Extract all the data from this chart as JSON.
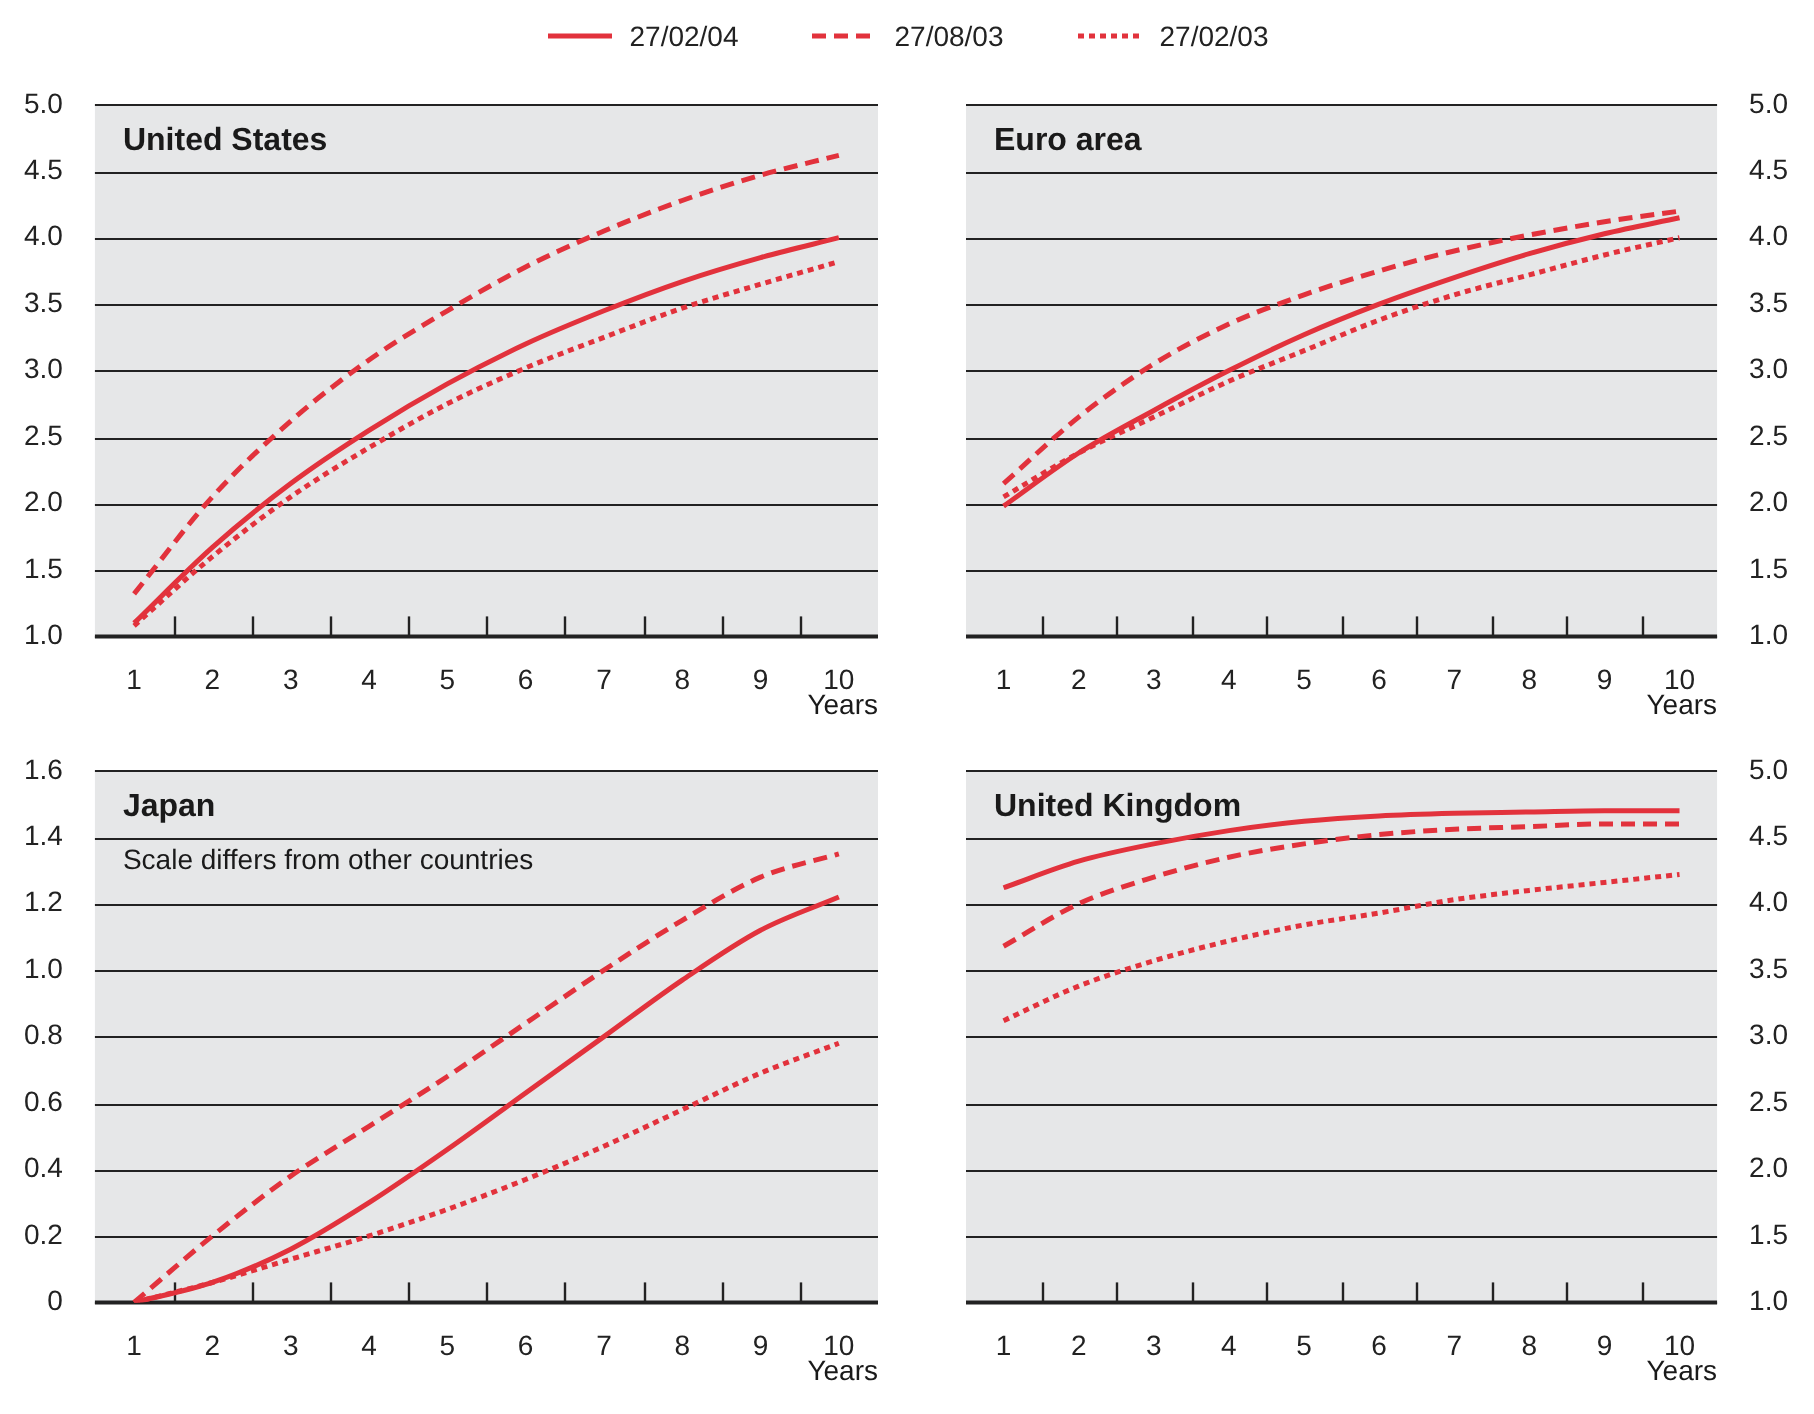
{
  "chart_data": [
    {
      "type": "line",
      "title": "United States",
      "xlabel": "Years",
      "categories": [
        "1",
        "2",
        "3",
        "4",
        "5",
        "6",
        "7",
        "8",
        "9",
        "10"
      ],
      "ylim": [
        1,
        5
      ],
      "yticks": [
        {
          "value": 1,
          "label": "1.0"
        },
        1.5,
        {
          "value": 2,
          "label": "2.0"
        },
        2.5,
        {
          "value": 3,
          "label": "3.0"
        },
        3.5,
        {
          "value": 4,
          "label": "4.0"
        },
        4.5,
        {
          "value": 5,
          "label": "5.0"
        }
      ],
      "grid": "y",
      "legend": "top",
      "marker": "none",
      "series": [
        {
          "name": "27/02/04",
          "color": "#e2323c",
          "line_style": "solid",
          "values": [
            1.1,
            1.67,
            2.15,
            2.55,
            2.9,
            3.2,
            3.45,
            3.67,
            3.85,
            4.0
          ]
        },
        {
          "name": "27/08/03",
          "color": "#e2323c",
          "line_style": "dashed",
          "values": [
            1.32,
            2.05,
            2.62,
            3.08,
            3.45,
            3.78,
            4.05,
            4.28,
            4.47,
            4.62
          ]
        },
        {
          "name": "27/02/03",
          "color": "#e2323c",
          "line_style": "dotted",
          "values": [
            1.08,
            1.6,
            2.05,
            2.42,
            2.75,
            3.02,
            3.25,
            3.47,
            3.65,
            3.82
          ]
        }
      ]
    },
    {
      "type": "line",
      "title": "Euro area",
      "xlabel": "Years",
      "categories": [
        "1",
        "2",
        "3",
        "4",
        "5",
        "6",
        "7",
        "8",
        "9",
        "10"
      ],
      "ylim": [
        1,
        5
      ],
      "yticks": [
        {
          "value": 1,
          "label": "1.0"
        },
        1.5,
        {
          "value": 2,
          "label": "2.0"
        },
        2.5,
        {
          "value": 3,
          "label": "3.0"
        },
        3.5,
        {
          "value": 4,
          "label": "4.0"
        },
        4.5,
        {
          "value": 5,
          "label": "5.0"
        }
      ],
      "grid": "y",
      "marker": "none",
      "series": [
        {
          "color": "#e2323c",
          "line_style": "solid",
          "values": [
            1.98,
            2.38,
            2.7,
            3.0,
            3.27,
            3.5,
            3.7,
            3.88,
            4.03,
            4.15
          ]
        },
        {
          "color": "#e2323c",
          "line_style": "dashed",
          "values": [
            2.15,
            2.65,
            3.05,
            3.35,
            3.57,
            3.75,
            3.9,
            4.02,
            4.12,
            4.2
          ]
        },
        {
          "color": "#e2323c",
          "line_style": "dotted",
          "values": [
            2.05,
            2.38,
            2.65,
            2.92,
            3.15,
            3.38,
            3.57,
            3.72,
            3.87,
            4.0
          ]
        }
      ]
    },
    {
      "type": "line",
      "title": "Japan",
      "subtitle": "Scale differs from other countries",
      "xlabel": "Years",
      "categories": [
        "1",
        "2",
        "3",
        "4",
        "5",
        "6",
        "7",
        "8",
        "9",
        "10"
      ],
      "ylim": [
        0,
        1.6
      ],
      "yticks": [
        0,
        0.2,
        0.4,
        0.6,
        0.8,
        {
          "value": 1,
          "label": "1.0"
        },
        1.2,
        1.4,
        1.6
      ],
      "grid": "y",
      "marker": "none",
      "series": [
        {
          "color": "#e2323c",
          "line_style": "solid",
          "values": [
            0,
            0.06,
            0.16,
            0.3,
            0.46,
            0.63,
            0.8,
            0.97,
            1.12,
            1.22
          ]
        },
        {
          "color": "#e2323c",
          "line_style": "dashed",
          "values": [
            0,
            0.2,
            0.38,
            0.53,
            0.68,
            0.84,
            1.0,
            1.15,
            1.28,
            1.35
          ]
        },
        {
          "color": "#e2323c",
          "line_style": "dotted",
          "values": [
            0,
            0.06,
            0.13,
            0.2,
            0.28,
            0.37,
            0.47,
            0.58,
            0.69,
            0.78
          ]
        }
      ]
    },
    {
      "type": "line",
      "title": "United Kingdom",
      "xlabel": "Years",
      "categories": [
        "1",
        "2",
        "3",
        "4",
        "5",
        "6",
        "7",
        "8",
        "9",
        "10"
      ],
      "ylim": [
        1,
        5
      ],
      "yticks": [
        {
          "value": 1,
          "label": "1.0"
        },
        1.5,
        {
          "value": 2,
          "label": "2.0"
        },
        2.5,
        {
          "value": 3,
          "label": "3.0"
        },
        3.5,
        {
          "value": 4,
          "label": "4.0"
        },
        4.5,
        {
          "value": 5,
          "label": "5.0"
        }
      ],
      "grid": "y",
      "marker": "none",
      "series": [
        {
          "color": "#e2323c",
          "line_style": "solid",
          "values": [
            4.12,
            4.32,
            4.45,
            4.55,
            4.62,
            4.66,
            4.68,
            4.69,
            4.7,
            4.7
          ]
        },
        {
          "color": "#e2323c",
          "line_style": "dashed",
          "values": [
            3.68,
            4.0,
            4.2,
            4.35,
            4.45,
            4.52,
            4.56,
            4.58,
            4.6,
            4.6
          ]
        },
        {
          "color": "#e2323c",
          "line_style": "dotted",
          "values": [
            3.12,
            3.38,
            3.57,
            3.72,
            3.84,
            3.93,
            4.03,
            4.1,
            4.16,
            4.22
          ]
        }
      ]
    }
  ]
}
